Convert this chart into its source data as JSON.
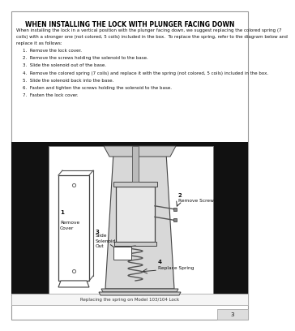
{
  "title": "WHEN INSTALLING THE LOCK WITH PLUNGER FACING DOWN",
  "intro_text": "When installing the lock in a vertical position with the plunger facing down, we suggest replacing the colored spring (7\ncoils) with a stronger one (not colored, 5 coils) included in the box.  To replace the spring, refer to the diagram below and\nreplace it as follows:",
  "steps": [
    "Remove the lock cover.",
    "Remove the screws holding the solenoid to the base.",
    "Slide the solenoid out of the base.",
    "Remove the colored spring (7 coils) and replace it with the spring (not colored, 5 coils) included in the box.",
    "Slide the solenoid back into the base.",
    "Fasten and tighten the screws holding the solenoid to the base.",
    "Fasten the lock cover."
  ],
  "caption": "Replacing the spring on Model 103/104 Lock",
  "page_number": "3",
  "bg_color": "#ffffff",
  "outer_bg": "#ffffff",
  "text_color": "#000000",
  "border_color": "#aaaaaa"
}
